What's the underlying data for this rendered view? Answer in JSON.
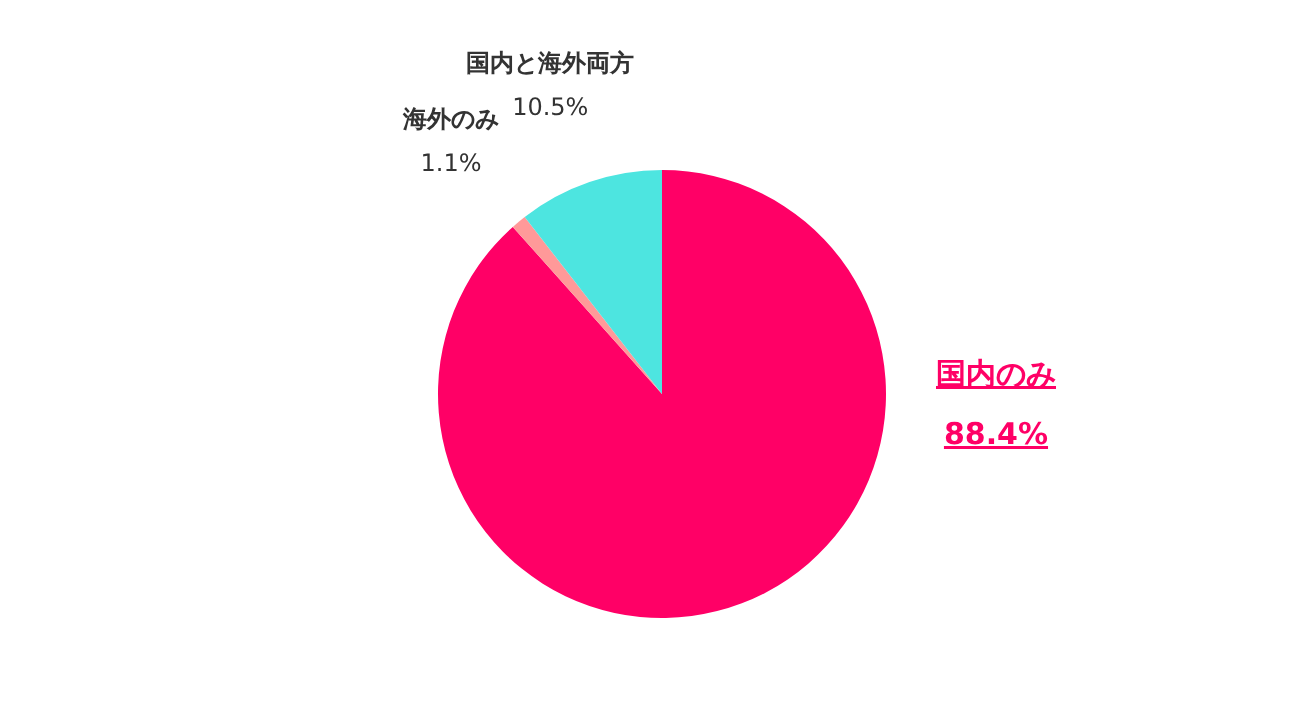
{
  "chart_data": {
    "type": "pie",
    "categories": [
      "国内のみ",
      "海外のみ",
      "国内と海外両方"
    ],
    "values": [
      88.4,
      1.1,
      10.5
    ],
    "colors": [
      "#ff0066",
      "#ff9999",
      "#4de5e0"
    ],
    "value_labels": [
      "88.4%",
      "1.1%",
      "10.5%"
    ],
    "legend": false
  }
}
